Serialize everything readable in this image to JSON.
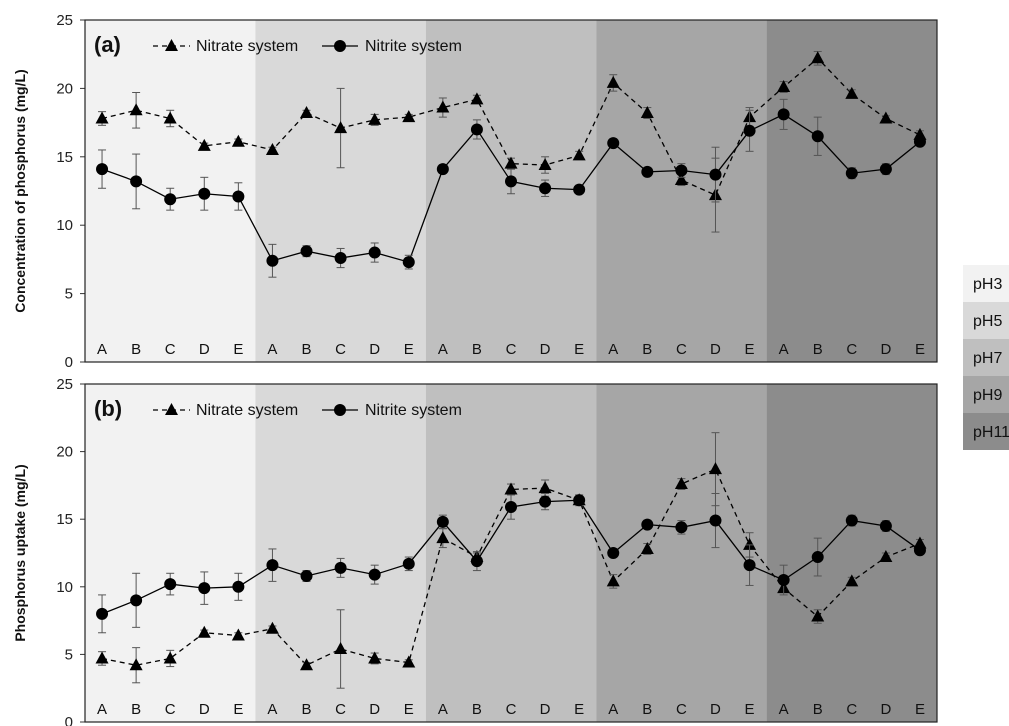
{
  "chart_data": [
    {
      "type": "line",
      "panel_label": "(a)",
      "ylabel": "Concentration of phosphorus (mg/L)",
      "ylim": [
        0,
        25
      ],
      "yticks": [
        "0",
        "5",
        "10",
        "15",
        "20",
        "25"
      ],
      "categories": [
        "A",
        "B",
        "C",
        "D",
        "E",
        "A",
        "B",
        "C",
        "D",
        "E",
        "A",
        "B",
        "C",
        "D",
        "E",
        "A",
        "B",
        "C",
        "D",
        "E",
        "A",
        "B",
        "C",
        "D",
        "E"
      ],
      "series": [
        {
          "name": "Nitrate system",
          "marker": "triangle",
          "line": "dashed",
          "values": [
            17.8,
            18.4,
            17.8,
            15.8,
            16.1,
            15.5,
            18.2,
            17.1,
            17.7,
            17.9,
            18.6,
            19.2,
            14.5,
            14.4,
            15.1,
            20.4,
            18.2,
            13.3,
            12.2,
            17.9,
            20.1,
            22.2,
            19.6,
            17.8,
            16.6
          ],
          "errors": [
            0.5,
            1.3,
            0.6,
            0.2,
            0.2,
            0.2,
            0.2,
            2.9,
            0.4,
            0.2,
            0.7,
            0.3,
            0.4,
            0.6,
            0.3,
            0.6,
            0.4,
            0.4,
            2.7,
            0.7,
            0.4,
            0.5,
            0.3,
            0.2,
            0.3
          ]
        },
        {
          "name": "Nitrite system",
          "marker": "circle",
          "line": "solid",
          "values": [
            14.1,
            13.2,
            11.9,
            12.3,
            12.1,
            7.4,
            8.1,
            7.6,
            8.0,
            7.3,
            14.1,
            17.0,
            13.2,
            12.7,
            12.6,
            16.0,
            13.9,
            14.0,
            13.7,
            16.9,
            18.1,
            16.5,
            13.8,
            14.1,
            16.1
          ],
          "errors": [
            1.4,
            2.0,
            0.8,
            1.2,
            1.0,
            1.2,
            0.4,
            0.7,
            0.7,
            0.5,
            0.3,
            0.7,
            0.9,
            0.6,
            0.2,
            0.2,
            0.2,
            0.5,
            2.0,
            1.5,
            1.1,
            1.4,
            0.4,
            0.4,
            0.3
          ]
        }
      ]
    },
    {
      "type": "line",
      "panel_label": "(b)",
      "ylabel": "Phosphorus uptake (mg/L)",
      "ylim": [
        0,
        25
      ],
      "yticks": [
        "0",
        "5",
        "10",
        "15",
        "20",
        "25"
      ],
      "categories": [
        "A",
        "B",
        "C",
        "D",
        "E",
        "A",
        "B",
        "C",
        "D",
        "E",
        "A",
        "B",
        "C",
        "D",
        "E",
        "A",
        "B",
        "C",
        "D",
        "E",
        "A",
        "B",
        "C",
        "D",
        "E"
      ],
      "series": [
        {
          "name": "Nitrate system",
          "marker": "triangle",
          "line": "dashed",
          "values": [
            4.7,
            4.2,
            4.7,
            6.6,
            6.4,
            6.9,
            4.2,
            5.4,
            4.7,
            4.4,
            13.6,
            12.2,
            17.2,
            17.3,
            16.4,
            10.4,
            12.8,
            17.6,
            18.7,
            13.1,
            9.9,
            7.8,
            10.4,
            12.2,
            13.2
          ],
          "errors": [
            0.5,
            1.3,
            0.6,
            0.2,
            0.2,
            0.2,
            0.2,
            2.9,
            0.4,
            0.2,
            0.7,
            0.3,
            0.4,
            0.6,
            0.3,
            0.5,
            0.4,
            0.4,
            2.7,
            0.9,
            0.3,
            0.5,
            0.3,
            0.3,
            0.3
          ]
        },
        {
          "name": "Nitrite system",
          "marker": "circle",
          "line": "solid",
          "values": [
            8.0,
            9.0,
            10.2,
            9.9,
            10.0,
            11.6,
            10.8,
            11.4,
            10.9,
            11.7,
            14.8,
            11.9,
            15.9,
            16.3,
            16.4,
            12.5,
            14.6,
            14.4,
            14.9,
            11.6,
            10.5,
            12.2,
            14.9,
            14.5,
            12.7
          ],
          "errors": [
            1.4,
            2.0,
            0.8,
            1.2,
            1.0,
            1.2,
            0.4,
            0.7,
            0.7,
            0.5,
            0.5,
            0.7,
            0.9,
            0.6,
            0.4,
            0.3,
            0.3,
            0.5,
            2.0,
            1.5,
            1.1,
            1.4,
            0.4,
            0.4,
            0.3
          ]
        }
      ]
    }
  ],
  "ph_groups": [
    {
      "label": "pH3",
      "color": "#f2f2f2"
    },
    {
      "label": "pH5",
      "color": "#d9d9d9"
    },
    {
      "label": "pH7",
      "color": "#bfbfbf"
    },
    {
      "label": "pH9",
      "color": "#a6a6a6"
    },
    {
      "label": "pH11",
      "color": "#8c8c8c"
    }
  ]
}
